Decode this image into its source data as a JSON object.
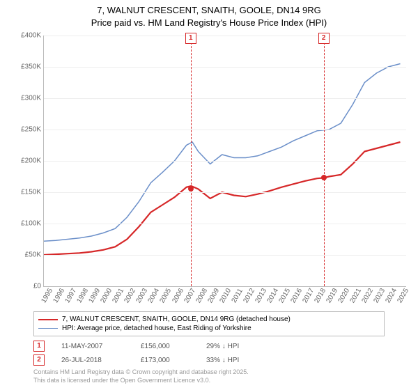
{
  "title_line1": "7, WALNUT CRESCENT, SNAITH, GOOLE, DN14 9RG",
  "title_line2": "Price paid vs. HM Land Registry's House Price Index (HPI)",
  "chart": {
    "type": "line",
    "background_color": "#ffffff",
    "grid_color": "#eeeeee",
    "axis_color": "#bbbbbb",
    "ylim": [
      0,
      400000
    ],
    "ytick_step": 50000,
    "yticks": [
      "£0",
      "£50K",
      "£100K",
      "£150K",
      "£200K",
      "£250K",
      "£300K",
      "£350K",
      "£400K"
    ],
    "xlim": [
      1995,
      2025.5
    ],
    "xticks": [
      1995,
      1996,
      1997,
      1998,
      1999,
      2000,
      2001,
      2002,
      2003,
      2004,
      2005,
      2006,
      2007,
      2008,
      2009,
      2010,
      2011,
      2012,
      2013,
      2014,
      2015,
      2016,
      2017,
      2018,
      2019,
      2020,
      2021,
      2022,
      2023,
      2024,
      2025
    ],
    "series": [
      {
        "name": "property",
        "label": "7, WALNUT CRESCENT, SNAITH, GOOLE, DN14 9RG (detached house)",
        "color": "#d62728",
        "line_width": 2.2,
        "points": [
          [
            1995,
            50000
          ],
          [
            1996,
            51000
          ],
          [
            1997,
            52000
          ],
          [
            1998,
            53000
          ],
          [
            1999,
            55000
          ],
          [
            2000,
            58000
          ],
          [
            2001,
            63000
          ],
          [
            2002,
            75000
          ],
          [
            2003,
            95000
          ],
          [
            2004,
            118000
          ],
          [
            2005,
            130000
          ],
          [
            2006,
            142000
          ],
          [
            2007,
            158000
          ],
          [
            2007.4,
            160000
          ],
          [
            2008,
            155000
          ],
          [
            2009,
            140000
          ],
          [
            2010,
            150000
          ],
          [
            2011,
            145000
          ],
          [
            2012,
            143000
          ],
          [
            2013,
            147000
          ],
          [
            2014,
            152000
          ],
          [
            2015,
            158000
          ],
          [
            2016,
            163000
          ],
          [
            2017,
            168000
          ],
          [
            2018,
            172000
          ],
          [
            2018.6,
            173000
          ],
          [
            2019,
            175000
          ],
          [
            2020,
            178000
          ],
          [
            2021,
            195000
          ],
          [
            2022,
            215000
          ],
          [
            2023,
            220000
          ],
          [
            2024,
            225000
          ],
          [
            2025,
            230000
          ]
        ]
      },
      {
        "name": "hpi",
        "label": "HPI: Average price, detached house, East Riding of Yorkshire",
        "color": "#6b8fc9",
        "line_width": 1.5,
        "points": [
          [
            1995,
            72000
          ],
          [
            1996,
            73000
          ],
          [
            1997,
            75000
          ],
          [
            1998,
            77000
          ],
          [
            1999,
            80000
          ],
          [
            2000,
            85000
          ],
          [
            2001,
            92000
          ],
          [
            2002,
            110000
          ],
          [
            2003,
            135000
          ],
          [
            2004,
            165000
          ],
          [
            2005,
            182000
          ],
          [
            2006,
            200000
          ],
          [
            2007,
            225000
          ],
          [
            2007.5,
            230000
          ],
          [
            2008,
            215000
          ],
          [
            2009,
            195000
          ],
          [
            2010,
            210000
          ],
          [
            2011,
            205000
          ],
          [
            2012,
            205000
          ],
          [
            2013,
            208000
          ],
          [
            2014,
            215000
          ],
          [
            2015,
            222000
          ],
          [
            2016,
            232000
          ],
          [
            2017,
            240000
          ],
          [
            2018,
            248000
          ],
          [
            2019,
            250000
          ],
          [
            2020,
            260000
          ],
          [
            2021,
            290000
          ],
          [
            2022,
            325000
          ],
          [
            2023,
            340000
          ],
          [
            2024,
            350000
          ],
          [
            2025,
            355000
          ]
        ]
      }
    ],
    "sale_markers": [
      {
        "n": "1",
        "x": 2007.36,
        "y": 156000
      },
      {
        "n": "2",
        "x": 2018.56,
        "y": 173000
      }
    ],
    "marker_border_color": "#d62728",
    "vline_color": "#d62728"
  },
  "legend": {
    "border_color": "#bbbbbb",
    "items": [
      {
        "color": "#d62728",
        "width": 2.2,
        "label": "7, WALNUT CRESCENT, SNAITH, GOOLE, DN14 9RG (detached house)"
      },
      {
        "color": "#6b8fc9",
        "width": 1.5,
        "label": "HPI: Average price, detached house, East Riding of Yorkshire"
      }
    ]
  },
  "sales_table": [
    {
      "n": "1",
      "date": "11-MAY-2007",
      "price": "£156,000",
      "delta": "29% ↓ HPI"
    },
    {
      "n": "2",
      "date": "26-JUL-2018",
      "price": "£173,000",
      "delta": "33% ↓ HPI"
    }
  ],
  "footer_line1": "Contains HM Land Registry data © Crown copyright and database right 2025.",
  "footer_line2": "This data is licensed under the Open Government Licence v3.0."
}
